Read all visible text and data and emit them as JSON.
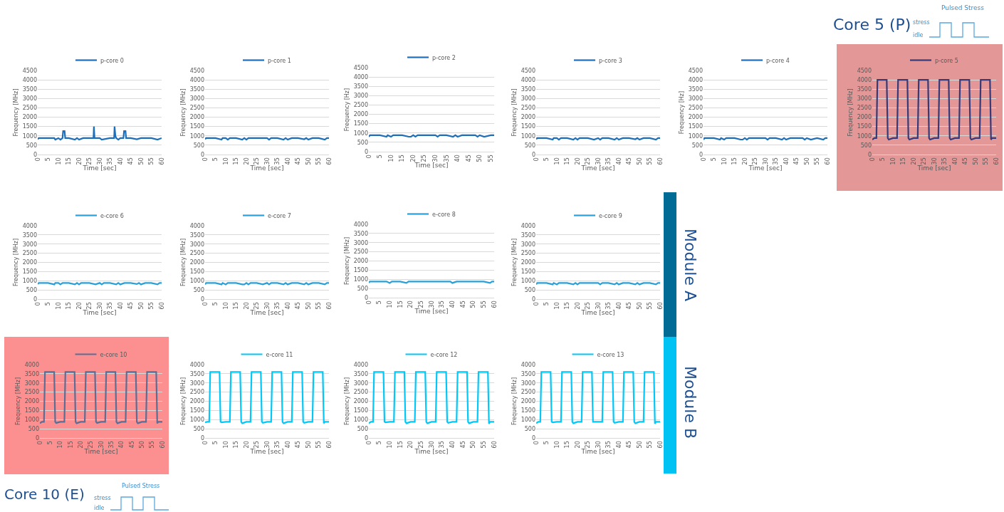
{
  "chart_data": [
    {
      "type": "line",
      "xlabel": "Time [sec]",
      "ylabel": "Frequency [MHz]",
      "xlim": [
        0,
        60
      ],
      "ylim": [
        0,
        4500
      ],
      "xticks": [
        0,
        5,
        10,
        15,
        20,
        25,
        30,
        35,
        40,
        45,
        50,
        55,
        60
      ],
      "yticks": [
        0,
        500,
        1000,
        1500,
        2000,
        2500,
        3000,
        3500,
        4000,
        4500
      ],
      "grid": "y",
      "legend": "top",
      "marker": "none",
      "x": [
        0,
        0.5,
        2,
        5,
        8,
        8.5,
        10,
        11,
        12,
        12.3,
        13,
        13.3,
        15,
        18,
        19,
        20,
        22,
        25,
        27,
        27.2,
        27.5,
        28,
        30,
        31,
        35,
        37,
        37.2,
        37.6,
        38,
        39,
        40,
        41.5,
        41.8,
        42.5,
        42.8,
        45,
        48,
        50,
        55,
        58,
        60
      ],
      "series": [
        {
          "name": "p-core 0",
          "color": "#1f6fb8",
          "values": [
            820,
            880,
            880,
            880,
            880,
            800,
            880,
            800,
            880,
            1250,
            1250,
            880,
            880,
            800,
            880,
            800,
            880,
            880,
            880,
            1500,
            880,
            880,
            880,
            800,
            880,
            880,
            1500,
            1000,
            880,
            800,
            880,
            880,
            1250,
            1250,
            880,
            880,
            820,
            880,
            880,
            800,
            880
          ]
        }
      ]
    },
    {
      "type": "line",
      "xlabel": "Time [sec]",
      "ylabel": "Frequency [MHz]",
      "xlim": [
        0,
        60
      ],
      "ylim": [
        0,
        4500
      ],
      "xticks": [
        0,
        5,
        10,
        15,
        20,
        25,
        30,
        35,
        40,
        45,
        50,
        55,
        60
      ],
      "yticks": [
        0,
        500,
        1000,
        1500,
        2000,
        2500,
        3000,
        3500,
        4000,
        4500
      ],
      "grid": "y",
      "legend": "top",
      "marker": "none",
      "x": [
        0,
        0.5,
        1,
        2,
        5,
        8,
        8.5,
        10,
        11,
        12,
        15,
        18,
        19,
        20,
        21,
        22,
        25,
        28,
        30,
        31,
        32,
        35,
        38,
        39,
        40,
        42,
        45,
        48,
        49,
        50,
        52,
        55,
        58,
        59,
        60
      ],
      "series": [
        {
          "name": "p-core 1",
          "color": "#1f6fb8",
          "values": [
            820,
            880,
            880,
            880,
            880,
            800,
            880,
            880,
            800,
            880,
            880,
            800,
            880,
            800,
            880,
            880,
            880,
            880,
            880,
            800,
            880,
            880,
            800,
            880,
            800,
            880,
            880,
            820,
            880,
            800,
            880,
            880,
            800,
            880,
            880
          ]
        }
      ]
    },
    {
      "type": "line",
      "xlabel": "Time [sec]",
      "ylabel": "Frequency [Hz]",
      "xlim": [
        0,
        56.5
      ],
      "ylim": [
        0,
        4500
      ],
      "xticks": [
        0,
        5,
        10,
        15,
        20,
        25,
        30,
        35,
        40,
        45,
        50,
        55
      ],
      "yticks": [
        0,
        500,
        1000,
        1500,
        2000,
        2500,
        3000,
        3500,
        4000,
        4500
      ],
      "grid": "y",
      "legend": "top",
      "marker": "none",
      "x": [
        0,
        0.5,
        1,
        2,
        5,
        8,
        8.5,
        10,
        11,
        12,
        15,
        18,
        19,
        20,
        21,
        22,
        25,
        28,
        30,
        31,
        32,
        35,
        38,
        39,
        40,
        42,
        45,
        48,
        49,
        50,
        52,
        55,
        56.5
      ],
      "series": [
        {
          "name": "p-core 2",
          "color": "#1f6fb8",
          "values": [
            800,
            880,
            880,
            880,
            880,
            800,
            880,
            800,
            880,
            880,
            880,
            800,
            800,
            880,
            800,
            880,
            880,
            880,
            880,
            800,
            880,
            880,
            800,
            880,
            800,
            880,
            880,
            880,
            800,
            880,
            800,
            880,
            880
          ]
        }
      ]
    },
    {
      "type": "line",
      "xlabel": "Time [sec]",
      "ylabel": "Frequency [MHz]",
      "xlim": [
        0,
        60
      ],
      "ylim": [
        0,
        4500
      ],
      "xticks": [
        0,
        5,
        10,
        15,
        20,
        25,
        30,
        35,
        40,
        45,
        50,
        55,
        60
      ],
      "yticks": [
        0,
        500,
        1000,
        1500,
        2000,
        2500,
        3000,
        3500,
        4000,
        4500
      ],
      "grid": "y",
      "legend": "top",
      "marker": "none",
      "x": [
        0,
        0.5,
        1,
        2,
        5,
        8,
        8.5,
        10,
        11,
        12,
        15,
        18,
        19,
        20,
        21,
        22,
        25,
        28,
        30,
        31,
        32,
        35,
        38,
        39,
        40,
        42,
        45,
        48,
        49,
        50,
        52,
        55,
        58,
        59,
        60
      ],
      "series": [
        {
          "name": "p-core 3",
          "color": "#1f6fb8",
          "values": [
            820,
            880,
            880,
            880,
            880,
            800,
            880,
            880,
            800,
            880,
            880,
            800,
            880,
            800,
            880,
            880,
            880,
            800,
            880,
            800,
            880,
            880,
            800,
            880,
            800,
            880,
            880,
            820,
            880,
            800,
            880,
            880,
            800,
            880,
            880
          ]
        }
      ]
    },
    {
      "type": "line",
      "xlabel": "Time [sec]",
      "ylabel": "Frequency [Hz]",
      "xlim": [
        0,
        60
      ],
      "ylim": [
        0,
        4500
      ],
      "xticks": [
        0,
        5,
        10,
        15,
        20,
        25,
        30,
        35,
        40,
        45,
        50,
        55,
        60
      ],
      "yticks": [
        0,
        500,
        1000,
        1500,
        2000,
        2500,
        3000,
        3500,
        4000,
        4500
      ],
      "grid": "y",
      "legend": "top",
      "marker": "none",
      "x": [
        0,
        0.5,
        1,
        2,
        5,
        8,
        8.5,
        10,
        11,
        12,
        15,
        18,
        19,
        20,
        21,
        22,
        25,
        28,
        30,
        31,
        32,
        35,
        38,
        39,
        40,
        42,
        45,
        48,
        49,
        50,
        52,
        55,
        58,
        59,
        60
      ],
      "series": [
        {
          "name": "p-core 4",
          "color": "#1f6fb8",
          "values": [
            800,
            880,
            880,
            880,
            880,
            800,
            880,
            800,
            880,
            880,
            880,
            800,
            800,
            880,
            800,
            880,
            880,
            880,
            880,
            800,
            880,
            880,
            800,
            880,
            800,
            880,
            880,
            880,
            800,
            880,
            800,
            880,
            800,
            880,
            880
          ]
        }
      ]
    },
    {
      "type": "line",
      "xlabel": "Time [sec]",
      "ylabel": "Frequency [MHz]",
      "xlim": [
        0,
        60
      ],
      "ylim": [
        0,
        4500
      ],
      "xticks": [
        0,
        5,
        10,
        15,
        20,
        25,
        30,
        35,
        40,
        45,
        50,
        55,
        60
      ],
      "yticks": [
        0,
        500,
        1000,
        1500,
        2000,
        2500,
        3000,
        3500,
        4000,
        4500
      ],
      "grid": "y",
      "legend": "top",
      "marker": "none",
      "annotations": [
        "Core 5 (P)",
        "Pulsed Stress",
        "stress",
        "idle"
      ],
      "x": [
        0,
        1,
        2,
        2.5,
        7,
        7.5,
        8,
        10,
        12,
        12.5,
        17,
        17.5,
        18,
        20,
        22,
        22.5,
        27,
        27.5,
        28,
        30,
        32,
        32.5,
        37,
        37.5,
        38,
        40,
        42,
        42.5,
        47,
        47.5,
        48,
        50,
        52,
        52.5,
        57,
        57.5,
        58,
        60
      ],
      "series": [
        {
          "name": "p-core 5",
          "color": "#363a78",
          "values": [
            800,
            880,
            880,
            4000,
            4000,
            880,
            800,
            880,
            880,
            4000,
            4000,
            880,
            800,
            880,
            880,
            4000,
            4000,
            880,
            800,
            880,
            880,
            4000,
            4000,
            880,
            800,
            880,
            880,
            4000,
            4000,
            880,
            800,
            880,
            880,
            4000,
            4000,
            800,
            880,
            880
          ]
        }
      ]
    },
    {
      "type": "line",
      "xlabel": "Time [sec]",
      "ylabel": "Frequency [MHz]",
      "xlim": [
        0,
        60
      ],
      "ylim": [
        0,
        4000
      ],
      "xticks": [
        0,
        5,
        10,
        15,
        20,
        25,
        30,
        35,
        40,
        45,
        50,
        55,
        60
      ],
      "yticks": [
        0,
        500,
        1000,
        1500,
        2000,
        2500,
        3000,
        3500,
        4000
      ],
      "grid": "y",
      "legend": "top",
      "marker": "none",
      "x": [
        0,
        0.5,
        1,
        2,
        5,
        8,
        8.5,
        10,
        11,
        12,
        15,
        18,
        19,
        20,
        21,
        22,
        25,
        28,
        30,
        31,
        32,
        35,
        38,
        39,
        40,
        42,
        45,
        48,
        49,
        50,
        52,
        55,
        58,
        59,
        60
      ],
      "series": [
        {
          "name": "e-core 6",
          "color": "#2aa0d8",
          "values": [
            820,
            880,
            880,
            880,
            880,
            800,
            880,
            880,
            800,
            880,
            880,
            800,
            880,
            800,
            880,
            880,
            880,
            800,
            880,
            800,
            880,
            880,
            800,
            880,
            800,
            880,
            880,
            820,
            880,
            800,
            880,
            880,
            800,
            880,
            880
          ]
        }
      ]
    },
    {
      "type": "line",
      "xlabel": "Time [sec]",
      "ylabel": "Frequency [MHz]",
      "xlim": [
        0,
        60
      ],
      "ylim": [
        0,
        4000
      ],
      "xticks": [
        0,
        5,
        10,
        15,
        20,
        25,
        30,
        35,
        40,
        45,
        50,
        55,
        60
      ],
      "yticks": [
        0,
        500,
        1000,
        1500,
        2000,
        2500,
        3000,
        3500,
        4000
      ],
      "grid": "y",
      "legend": "top",
      "marker": "none",
      "x": [
        0,
        0.5,
        1,
        2,
        5,
        8,
        8.5,
        10,
        11,
        12,
        15,
        18,
        19,
        20,
        21,
        22,
        25,
        28,
        30,
        31,
        32,
        35,
        38,
        39,
        40,
        42,
        45,
        48,
        49,
        50,
        52,
        55,
        58,
        59,
        60
      ],
      "series": [
        {
          "name": "e-core 7",
          "color": "#2aa0d8",
          "values": [
            800,
            880,
            880,
            880,
            880,
            800,
            880,
            800,
            880,
            880,
            880,
            800,
            800,
            880,
            800,
            880,
            880,
            800,
            880,
            800,
            880,
            880,
            800,
            880,
            800,
            880,
            880,
            800,
            880,
            800,
            880,
            880,
            800,
            880,
            880
          ]
        }
      ]
    },
    {
      "type": "line",
      "xlabel": "Time [sec]",
      "ylabel": "Frequency [MHz]",
      "xlim": [
        0,
        60
      ],
      "ylim": [
        0,
        4000
      ],
      "xticks": [
        0,
        5,
        10,
        15,
        20,
        25,
        30,
        35,
        40,
        45,
        50,
        55,
        60
      ],
      "yticks": [
        0,
        500,
        1000,
        1500,
        2000,
        2500,
        3000,
        3500,
        4000
      ],
      "grid": "y",
      "legend": "top",
      "marker": "none",
      "x": [
        0,
        0.5,
        1,
        2,
        5,
        8,
        8.5,
        10,
        11,
        12,
        15,
        18,
        19,
        20,
        21,
        22,
        25,
        28,
        30,
        31,
        32,
        35,
        38,
        39,
        40,
        42,
        45,
        48,
        49,
        50,
        52,
        55,
        58,
        59,
        60
      ],
      "series": [
        {
          "name": "e-core 8",
          "color": "#2aa0d8",
          "values": [
            820,
            880,
            880,
            880,
            880,
            880,
            880,
            800,
            880,
            880,
            880,
            800,
            880,
            880,
            880,
            880,
            880,
            880,
            880,
            880,
            880,
            880,
            880,
            880,
            800,
            880,
            880,
            880,
            880,
            880,
            880,
            880,
            800,
            880,
            880
          ]
        }
      ]
    },
    {
      "type": "line",
      "xlabel": "Time [sec]",
      "ylabel": "Frequency [MHz]",
      "xlim": [
        0,
        60
      ],
      "ylim": [
        0,
        4000
      ],
      "xticks": [
        0,
        5,
        10,
        15,
        20,
        25,
        30,
        35,
        40,
        45,
        50,
        55,
        60
      ],
      "yticks": [
        0,
        500,
        1000,
        1500,
        2000,
        2500,
        3000,
        3500,
        4000
      ],
      "grid": "y",
      "legend": "top",
      "marker": "none",
      "annotations": [
        "Module A"
      ],
      "x": [
        0,
        0.5,
        1,
        2,
        5,
        8,
        8.5,
        10,
        11,
        12,
        15,
        18,
        19,
        20,
        21,
        22,
        25,
        28,
        30,
        31,
        32,
        35,
        38,
        39,
        40,
        42,
        45,
        48,
        49,
        50,
        52,
        55,
        58,
        59,
        60
      ],
      "series": [
        {
          "name": "e-core 9",
          "color": "#2aa0d8",
          "values": [
            800,
            880,
            880,
            880,
            880,
            800,
            880,
            800,
            880,
            880,
            880,
            800,
            880,
            800,
            880,
            880,
            880,
            880,
            880,
            800,
            880,
            880,
            800,
            880,
            800,
            880,
            880,
            800,
            880,
            800,
            880,
            880,
            800,
            880,
            880
          ]
        }
      ]
    },
    {
      "type": "line",
      "xlabel": "Time [sec]",
      "ylabel": "Frequency [MHz]",
      "xlim": [
        0,
        60
      ],
      "ylim": [
        0,
        4000
      ],
      "xticks": [
        0,
        5,
        10,
        15,
        20,
        25,
        30,
        35,
        40,
        45,
        50,
        55,
        60
      ],
      "yticks": [
        0,
        500,
        1000,
        1500,
        2000,
        2500,
        3000,
        3500,
        4000
      ],
      "grid": "y",
      "legend": "top",
      "marker": "none",
      "annotations": [
        "Core 10 (E)",
        "Pulsed Stress",
        "stress",
        "idle"
      ],
      "x": [
        0,
        1,
        2,
        2.5,
        7,
        7.5,
        8,
        10,
        12,
        12.5,
        17,
        17.5,
        18,
        20,
        22,
        22.5,
        27,
        27.5,
        28,
        30,
        32,
        32.5,
        37,
        37.5,
        38,
        40,
        42,
        42.5,
        47,
        47.5,
        48,
        50,
        52,
        52.5,
        57,
        57.5,
        58,
        60
      ],
      "series": [
        {
          "name": "e-core 10",
          "color": "#5b6e96",
          "values": [
            800,
            880,
            880,
            3600,
            3600,
            880,
            820,
            880,
            880,
            3600,
            3600,
            880,
            800,
            880,
            880,
            3600,
            3600,
            880,
            820,
            880,
            880,
            3600,
            3600,
            880,
            800,
            880,
            880,
            3600,
            3600,
            880,
            800,
            880,
            880,
            3600,
            3600,
            800,
            880,
            880
          ]
        }
      ]
    },
    {
      "type": "line",
      "xlabel": "Time [sec]",
      "ylabel": "Frequency [MHz]",
      "xlim": [
        0,
        60
      ],
      "ylim": [
        0,
        4000
      ],
      "xticks": [
        0,
        5,
        10,
        15,
        20,
        25,
        30,
        35,
        40,
        45,
        50,
        55,
        60
      ],
      "yticks": [
        0,
        500,
        1000,
        1500,
        2000,
        2500,
        3000,
        3500,
        4000
      ],
      "grid": "y",
      "legend": "top",
      "marker": "none",
      "x": [
        0,
        1,
        2,
        2.5,
        7,
        7.5,
        8,
        10,
        12,
        12.5,
        17,
        17.5,
        18,
        20,
        22,
        22.5,
        27,
        27.5,
        28,
        30,
        32,
        32.5,
        37,
        37.5,
        38,
        40,
        42,
        42.5,
        47,
        47.5,
        48,
        50,
        52,
        52.5,
        57,
        57.5,
        58,
        60
      ],
      "series": [
        {
          "name": "e-core 11",
          "color": "#00c8f8",
          "values": [
            850,
            880,
            880,
            3600,
            3600,
            880,
            850,
            880,
            880,
            3600,
            3600,
            880,
            800,
            880,
            880,
            3600,
            3600,
            880,
            820,
            880,
            880,
            3600,
            3600,
            880,
            800,
            880,
            880,
            3600,
            3600,
            880,
            820,
            880,
            880,
            3600,
            3600,
            800,
            880,
            880
          ]
        }
      ]
    },
    {
      "type": "line",
      "xlabel": "Time [sec]",
      "ylabel": "Frequency [MHz]",
      "xlim": [
        0,
        60
      ],
      "ylim": [
        0,
        4000
      ],
      "xticks": [
        0,
        5,
        10,
        15,
        20,
        25,
        30,
        35,
        40,
        45,
        50,
        55,
        60
      ],
      "yticks": [
        0,
        500,
        1000,
        1500,
        2000,
        2500,
        3000,
        3500,
        4000
      ],
      "grid": "y",
      "legend": "top",
      "marker": "none",
      "x": [
        0,
        1,
        2,
        2.5,
        7,
        7.5,
        8,
        10,
        12,
        12.5,
        17,
        17.5,
        18,
        20,
        22,
        22.5,
        27,
        27.5,
        28,
        30,
        32,
        32.5,
        37,
        37.5,
        38,
        40,
        42,
        42.5,
        47,
        47.5,
        48,
        50,
        52,
        52.5,
        57,
        57.5,
        58,
        60
      ],
      "series": [
        {
          "name": "e-core 12",
          "color": "#00c8f8",
          "values": [
            800,
            880,
            880,
            3600,
            3600,
            880,
            850,
            880,
            880,
            3600,
            3600,
            880,
            800,
            880,
            880,
            3600,
            3600,
            880,
            800,
            880,
            880,
            3600,
            3600,
            880,
            820,
            880,
            880,
            3600,
            3600,
            880,
            800,
            880,
            880,
            3600,
            3600,
            780,
            880,
            880
          ]
        }
      ]
    },
    {
      "type": "line",
      "xlabel": "Time [sec]",
      "ylabel": "Frequency [MHz]",
      "xlim": [
        0,
        60
      ],
      "ylim": [
        0,
        4000
      ],
      "xticks": [
        0,
        5,
        10,
        15,
        20,
        25,
        30,
        35,
        40,
        45,
        50,
        55,
        60
      ],
      "yticks": [
        0,
        500,
        1000,
        1500,
        2000,
        2500,
        3000,
        3500,
        4000
      ],
      "grid": "y",
      "legend": "top",
      "marker": "none",
      "annotations": [
        "Module B"
      ],
      "x": [
        0,
        1,
        2,
        2.5,
        7,
        7.5,
        8,
        10,
        12,
        12.5,
        17,
        17.5,
        18,
        20,
        22,
        22.5,
        27,
        27.5,
        28,
        30,
        32,
        32.5,
        37,
        37.5,
        38,
        40,
        42,
        42.5,
        47,
        47.5,
        48,
        50,
        52,
        52.5,
        57,
        57.5,
        58,
        60
      ],
      "series": [
        {
          "name": "e-core 13",
          "color": "#00c8f8",
          "values": [
            800,
            880,
            880,
            3600,
            3600,
            880,
            850,
            880,
            880,
            3600,
            3600,
            880,
            800,
            880,
            880,
            3600,
            3600,
            880,
            880,
            880,
            880,
            3600,
            3600,
            880,
            820,
            880,
            880,
            3600,
            3600,
            880,
            800,
            880,
            880,
            3600,
            3600,
            780,
            880,
            880
          ]
        }
      ]
    }
  ]
}
